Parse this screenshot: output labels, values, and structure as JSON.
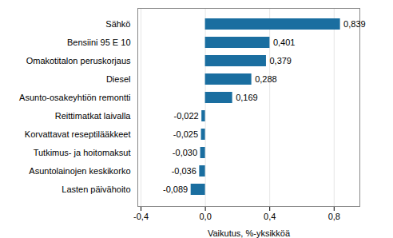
{
  "chart_data": {
    "type": "bar",
    "orientation": "horizontal",
    "categories": [
      "Lasten päivähoito",
      "Asuntolainojen keskikorko",
      "Tutkimus- ja hoitomaksut",
      "Korvattavat reseptilääkkeet",
      "Reittimatkat laivalla",
      "Asunto-osakeyhtiön remontti",
      "Diesel",
      "Omakotitalon peruskorjaus",
      "Bensiini 95 E 10",
      "Sähkö"
    ],
    "values": [
      -0.089,
      -0.036,
      -0.03,
      -0.025,
      -0.022,
      0.169,
      0.288,
      0.379,
      0.401,
      0.839
    ],
    "value_labels": [
      "-0,089",
      "-0,036",
      "-0,030",
      "-0,025",
      "-0,022",
      "0,169",
      "0,288",
      "0,379",
      "0,401",
      "0,839"
    ],
    "data_labels": true,
    "color": "#1a6ea0",
    "xlabel": "Vaikutus, %-yksikköä",
    "xlim": [
      -0.42,
      0.96
    ],
    "xticks": [
      {
        "value": -0.4,
        "label": "-0,4"
      },
      {
        "value": 0.0,
        "label": "0,0"
      },
      {
        "value": 0.4,
        "label": "0,4"
      },
      {
        "value": 0.8,
        "label": "0,8"
      }
    ],
    "grid": true
  }
}
